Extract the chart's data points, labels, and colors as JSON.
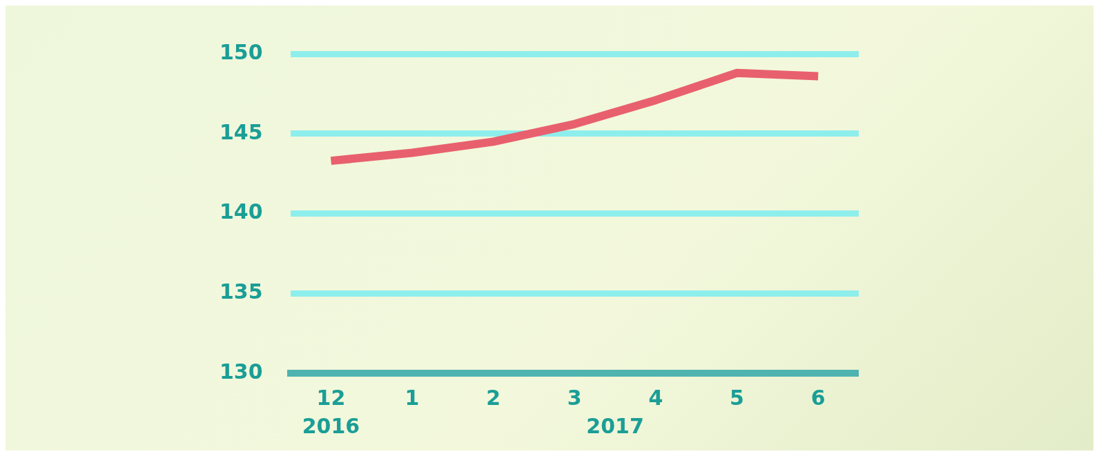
{
  "chart_data": {
    "type": "line",
    "categories": [
      "12",
      "1",
      "2",
      "3",
      "4",
      "5",
      "6"
    ],
    "series": [
      {
        "color": "#e8606e",
        "values": [
          143.3,
          143.8,
          144.5,
          145.6,
          147.1,
          148.8,
          148.6
        ]
      }
    ],
    "ylim": [
      130,
      150
    ],
    "yticks": [
      130,
      135,
      140,
      145,
      150
    ],
    "grid": "y",
    "marker": "none",
    "line_style": "solid",
    "legend": false,
    "annotations": [
      "2016",
      "2017"
    ]
  }
}
